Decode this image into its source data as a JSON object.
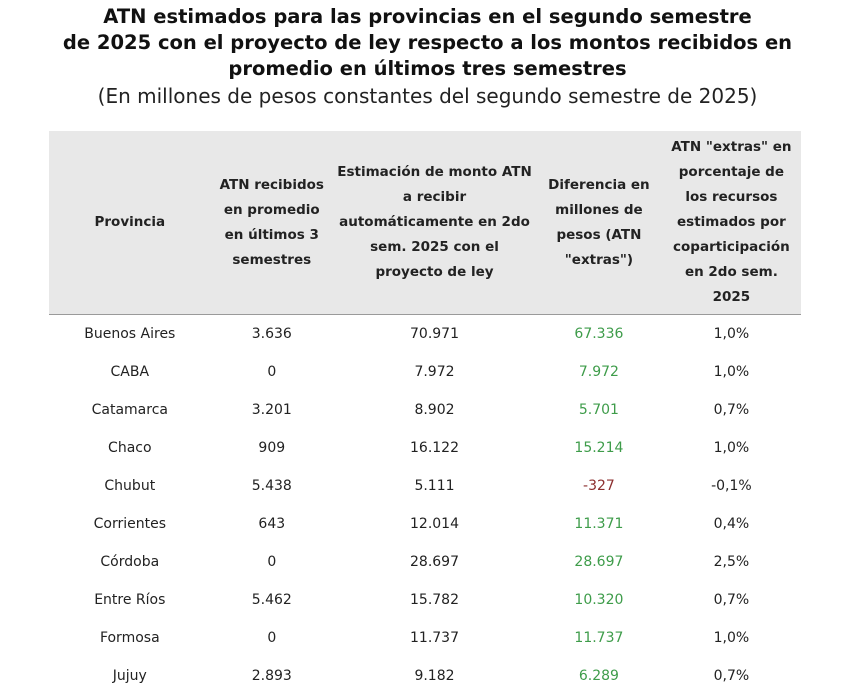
{
  "title": {
    "lines": [
      "ATN estimados para las provincias en el segundo semestre",
      "de 2025 con el proyecto de ley respecto a los montos recibidos en",
      "promedio en últimos tres semestres"
    ],
    "subtitle": "(En millones de pesos constantes del segundo semestre de 2025)"
  },
  "table": {
    "headers": [
      "Provincia",
      "ATN recibidos en promedio en últimos 3 semestres",
      "Estimación de monto ATN a recibir automáticamente en 2do sem. 2025 con el proyecto de ley",
      "Diferencia en millones de pesos (ATN \"extras\")",
      "ATN \"extras\" en porcentaje de los recursos estimados por coparticipación en 2do sem. 2025"
    ],
    "rows": [
      {
        "provincia": "Buenos Aires",
        "recibidos": "3.636",
        "estimacion": "70.971",
        "diferencia": "67.336",
        "porcentaje": "1,0%"
      },
      {
        "provincia": "CABA",
        "recibidos": "0",
        "estimacion": "7.972",
        "diferencia": "7.972",
        "porcentaje": "1,0%"
      },
      {
        "provincia": "Catamarca",
        "recibidos": "3.201",
        "estimacion": "8.902",
        "diferencia": "5.701",
        "porcentaje": "0,7%"
      },
      {
        "provincia": "Chaco",
        "recibidos": "909",
        "estimacion": "16.122",
        "diferencia": "15.214",
        "porcentaje": "1,0%"
      },
      {
        "provincia": "Chubut",
        "recibidos": "5.438",
        "estimacion": "5.111",
        "diferencia": "-327",
        "porcentaje": "-0,1%"
      },
      {
        "provincia": "Corrientes",
        "recibidos": "643",
        "estimacion": "12.014",
        "diferencia": "11.371",
        "porcentaje": "0,4%"
      },
      {
        "provincia": "Córdoba",
        "recibidos": "0",
        "estimacion": "28.697",
        "diferencia": "28.697",
        "porcentaje": "2,5%"
      },
      {
        "provincia": "Entre Ríos",
        "recibidos": "5.462",
        "estimacion": "15.782",
        "diferencia": "10.320",
        "porcentaje": "0,7%"
      },
      {
        "provincia": "Formosa",
        "recibidos": "0",
        "estimacion": "11.737",
        "diferencia": "11.737",
        "porcentaje": "1,0%"
      },
      {
        "provincia": "Jujuy",
        "recibidos": "2.893",
        "estimacion": "9.182",
        "diferencia": "6.289",
        "porcentaje": "0,7%"
      }
    ]
  },
  "colors": {
    "header_bg": "#e8e8e8",
    "positive": "#3e9c4a",
    "negative": "#8c2f2f",
    "text": "#222222"
  }
}
